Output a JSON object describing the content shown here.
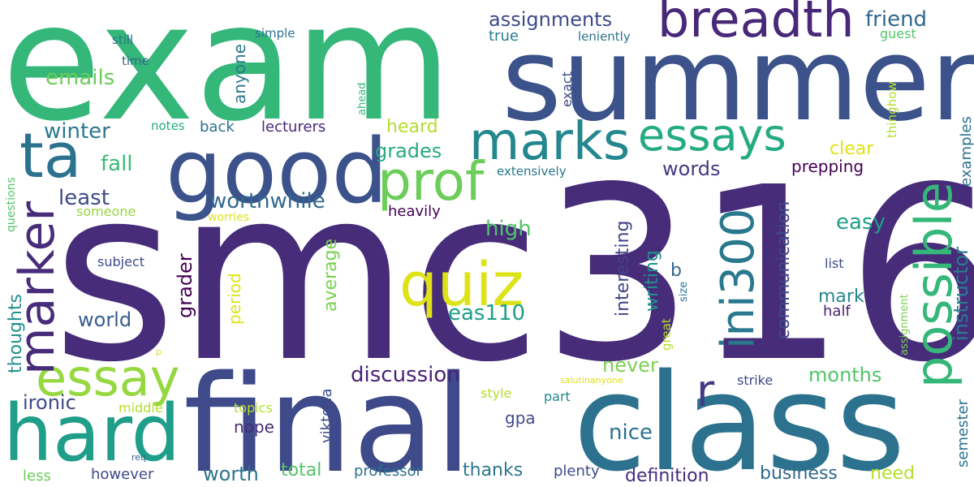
{
  "words": [
    {
      "text": "smc316",
      "color": "#472c7a"
    },
    {
      "text": "exam",
      "color": "#35b779"
    },
    {
      "text": "summer",
      "color": "#3b528b"
    },
    {
      "text": "final",
      "color": "#3e4a89"
    },
    {
      "text": "class",
      "color": "#2c728e"
    },
    {
      "text": "good",
      "color": "#3b528b"
    },
    {
      "text": "hard",
      "color": "#1f9e89"
    },
    {
      "text": "breadth",
      "color": "#482878"
    },
    {
      "text": "essays",
      "color": "#25ab82"
    },
    {
      "text": "marks",
      "color": "#24878e"
    },
    {
      "text": "quiz",
      "color": "#dde318"
    },
    {
      "text": "prof",
      "color": "#6ccd5a"
    },
    {
      "text": "ta",
      "color": "#2c728e"
    },
    {
      "text": "marker",
      "color": "#472c7a"
    },
    {
      "text": "essay",
      "color": "#95d840"
    },
    {
      "text": "possible",
      "color": "#35b779"
    },
    {
      "text": "ini300",
      "color": "#2a788e"
    },
    {
      "text": "r",
      "color": "#443983"
    },
    {
      "text": "discussion",
      "color": "#482475"
    },
    {
      "text": "worthwhile",
      "color": "#31688e"
    },
    {
      "text": "assignments",
      "color": "#3e4a89"
    },
    {
      "text": "emails",
      "color": "#6ccd5a"
    },
    {
      "text": "winter",
      "color": "#2a788e"
    },
    {
      "text": "fall",
      "color": "#3bbb75"
    },
    {
      "text": "least",
      "color": "#3e4a89"
    },
    {
      "text": "grades",
      "color": "#25ab82"
    },
    {
      "text": "heard",
      "color": "#b5de2b"
    },
    {
      "text": "friend",
      "color": "#31688e"
    },
    {
      "text": "words",
      "color": "#443983"
    },
    {
      "text": "clear",
      "color": "#dde318"
    },
    {
      "text": "prepping",
      "color": "#440154"
    },
    {
      "text": "instructor",
      "color": "#287d8e"
    },
    {
      "text": "communication",
      "color": "#3e4a89"
    },
    {
      "text": "interesting",
      "color": "#404387"
    },
    {
      "text": "writing",
      "color": "#21918c"
    },
    {
      "text": "easy",
      "color": "#1f9e89"
    },
    {
      "text": "high",
      "color": "#52c569"
    },
    {
      "text": "eas110",
      "color": "#1f9e89"
    },
    {
      "text": "world",
      "color": "#365c8d"
    },
    {
      "text": "grader",
      "color": "#440154"
    },
    {
      "text": "ironic",
      "color": "#3e4a89"
    },
    {
      "text": "months",
      "color": "#52c569"
    },
    {
      "text": "never",
      "color": "#7ad151"
    },
    {
      "text": "nice",
      "color": "#2c728e"
    },
    {
      "text": "worth",
      "color": "#2c728e"
    },
    {
      "text": "total",
      "color": "#52c569"
    },
    {
      "text": "thanks",
      "color": "#2a788e"
    },
    {
      "text": "definition",
      "color": "#472c7a"
    },
    {
      "text": "business",
      "color": "#31688e"
    },
    {
      "text": "need",
      "color": "#b5de2b"
    },
    {
      "text": "nope",
      "color": "#472c7a"
    },
    {
      "text": "gpa",
      "color": "#3e4a89"
    },
    {
      "text": "mark",
      "color": "#24878e"
    },
    {
      "text": "half",
      "color": "#482475"
    },
    {
      "text": "average",
      "color": "#7ad151"
    },
    {
      "text": "period",
      "color": "#dde318"
    },
    {
      "text": "viktoria",
      "color": "#3e4a89"
    },
    {
      "text": "thoughts",
      "color": "#21918c"
    },
    {
      "text": "semester",
      "color": "#2c728e"
    },
    {
      "text": "examples",
      "color": "#2c728e"
    },
    {
      "text": "anyone",
      "color": "#2a788e"
    },
    {
      "text": "back",
      "color": "#2c728e"
    },
    {
      "text": "lecturers",
      "color": "#482878"
    },
    {
      "text": "true",
      "color": "#287d8e"
    },
    {
      "text": "exact",
      "color": "#3e4a89"
    },
    {
      "text": "professor",
      "color": "#2c728e"
    },
    {
      "text": "plenty",
      "color": "#3e4a89"
    },
    {
      "text": "however",
      "color": "#3e4a89"
    },
    {
      "text": "less",
      "color": "#6ccd5a"
    },
    {
      "text": "heavily",
      "color": "#440154"
    },
    {
      "text": "list",
      "color": "#3e4a89"
    },
    {
      "text": "b",
      "color": "#31688e"
    },
    {
      "text": "someone",
      "color": "#95d840"
    },
    {
      "text": "subject",
      "color": "#3e4a89"
    },
    {
      "text": "topics",
      "color": "#b5de2b"
    },
    {
      "text": "part",
      "color": "#24878e"
    },
    {
      "text": "strike",
      "color": "#3e4a89"
    },
    {
      "text": "style",
      "color": "#b5de2b"
    },
    {
      "text": "middle",
      "color": "#b5de2b"
    },
    {
      "text": "extensively",
      "color": "#2a788e"
    },
    {
      "text": "simple",
      "color": "#2c728e"
    },
    {
      "text": "leniently",
      "color": "#2c728e"
    },
    {
      "text": "guest",
      "color": "#52c569"
    },
    {
      "text": "still",
      "color": "#2c728e"
    },
    {
      "text": "time",
      "color": "#31688e"
    },
    {
      "text": "notes",
      "color": "#25ab82"
    },
    {
      "text": "worries",
      "color": "#dde318"
    },
    {
      "text": "questions",
      "color": "#52c569"
    },
    {
      "text": "ahead",
      "color": "#35b779"
    },
    {
      "text": "thinghow",
      "color": "#b5de2b"
    },
    {
      "text": "great",
      "color": "#b5de2b"
    },
    {
      "text": "size",
      "color": "#2c728e"
    },
    {
      "text": "assignment",
      "color": "#7ad151"
    },
    {
      "text": "salutinanyone",
      "color": "#dde318"
    },
    {
      "text": "p",
      "color": "#dde318"
    },
    {
      "text": "req",
      "color": "#31688e"
    }
  ]
}
